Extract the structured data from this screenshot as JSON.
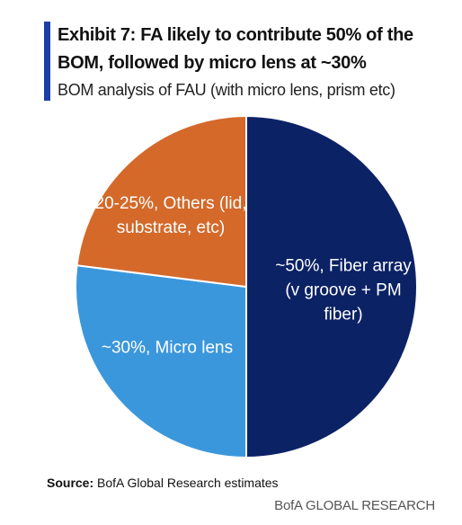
{
  "chart_data": {
    "type": "pie",
    "title": "Exhibit 7: FA likely to contribute 50% of the BOM, followed by micro lens at ~30%",
    "subtitle": "BOM analysis of FAU (with micro lens, prism etc)",
    "categories": [
      "~50%, Fiber array (v groove + PM fiber)",
      "~30%, Micro lens",
      "20-25%, Others (lid, substrate, etc)"
    ],
    "values": [
      50,
      27,
      23
    ],
    "colors": [
      "#0b2265",
      "#3b97dc",
      "#d4692a"
    ],
    "source_label": "Source:",
    "source": "BofA Global Research estimates",
    "footer": "BofA GLOBAL RESEARCH"
  }
}
